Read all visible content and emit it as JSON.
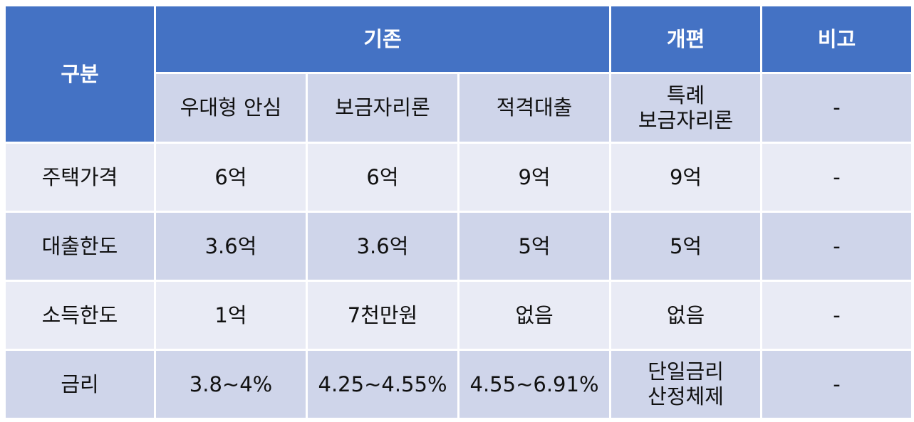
{
  "header": {
    "category": "구분",
    "group": "기존",
    "reform": "개편",
    "note": "비고"
  },
  "subheader": [
    [
      "우대형 안심"
    ],
    [
      "보금자리론"
    ],
    [
      "적격대출"
    ],
    [
      "특례",
      "보금자리론"
    ],
    [
      "-"
    ]
  ],
  "rows": [
    [
      [
        "주택가격"
      ],
      [
        "6억"
      ],
      [
        "6억"
      ],
      [
        "9억"
      ],
      [
        "9억"
      ],
      [
        "-"
      ]
    ],
    [
      [
        "대출한도"
      ],
      [
        "3.6억"
      ],
      [
        "3.6억"
      ],
      [
        "5억"
      ],
      [
        "5억"
      ],
      [
        "-"
      ]
    ],
    [
      [
        "소득한도"
      ],
      [
        "1억"
      ],
      [
        "7천만원"
      ],
      [
        "없음"
      ],
      [
        "없음"
      ],
      [
        "-"
      ]
    ],
    [
      [
        "금리"
      ],
      [
        "3.8~4%"
      ],
      [
        "4.25~4.55%"
      ],
      [
        "4.55~6.91%"
      ],
      [
        "단일금리",
        "산정체제"
      ],
      [
        "-"
      ]
    ]
  ]
}
